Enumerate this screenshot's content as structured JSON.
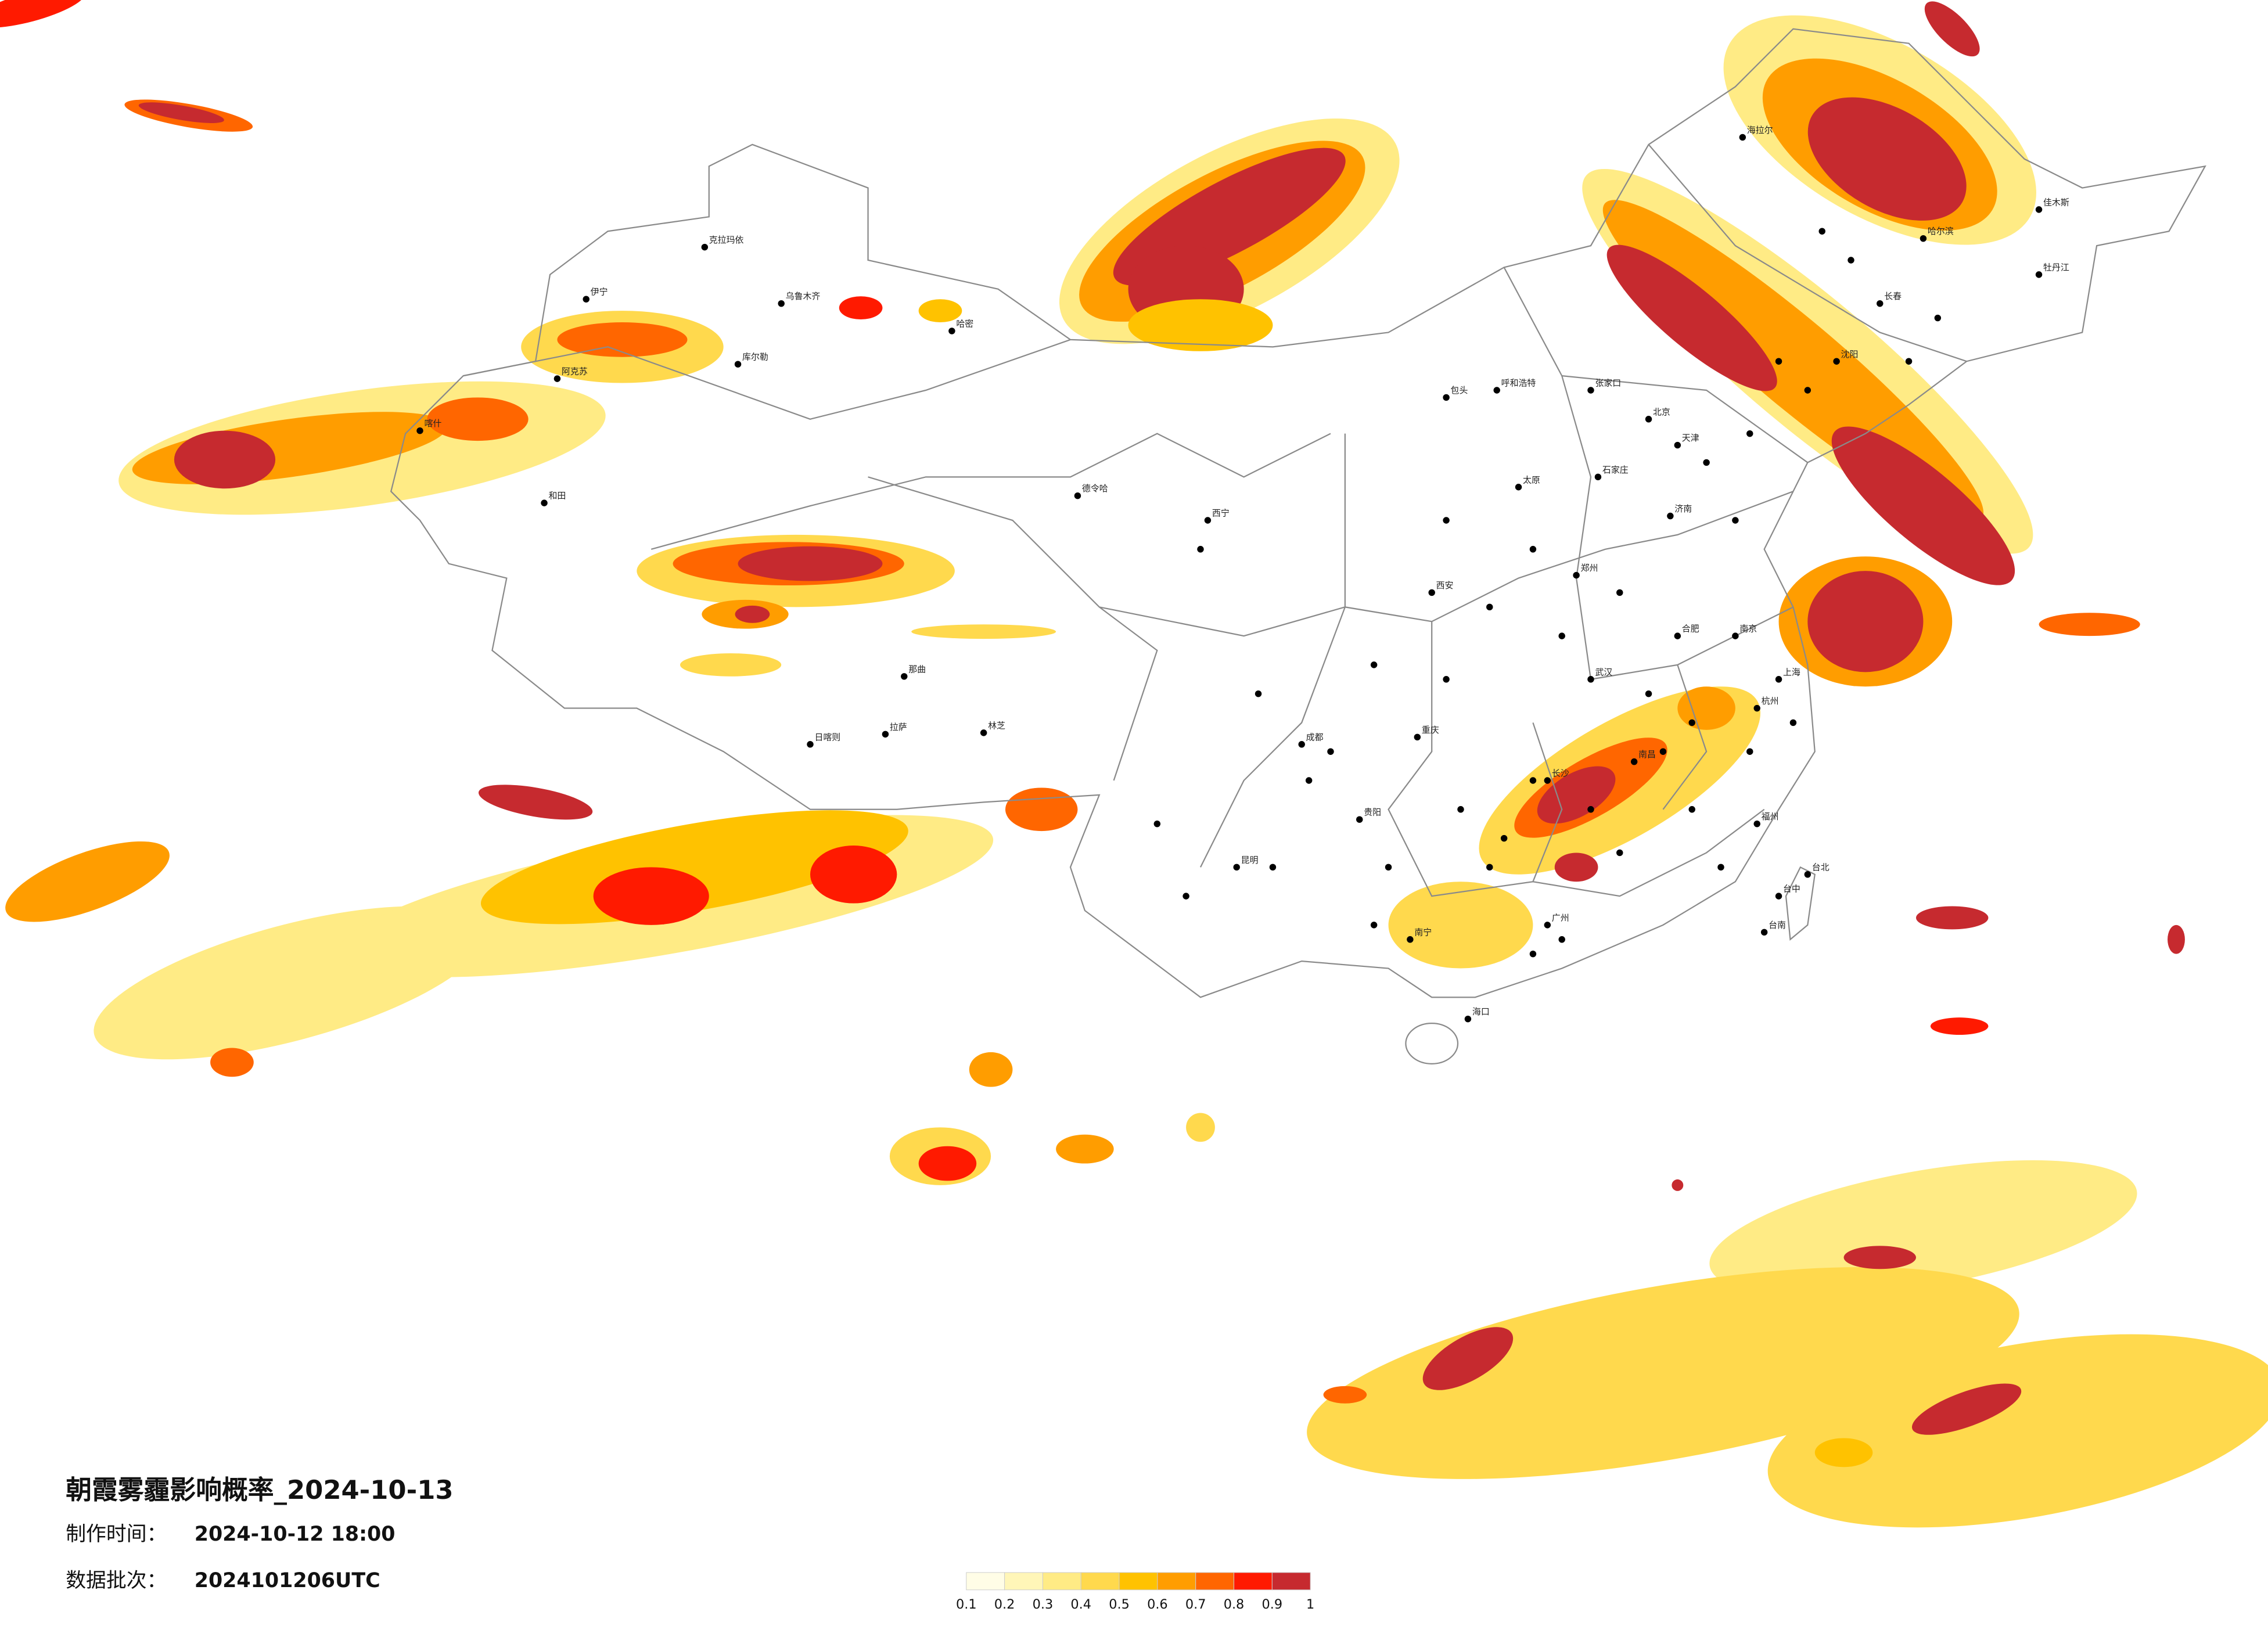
{
  "title": "朝霞雾霾影响概率_2024-10-13",
  "made": {
    "label": "制作时间：",
    "value": "2024-10-12 18:00"
  },
  "batch": {
    "label": "数据批次：",
    "value": "2024101206UTC"
  },
  "legend": {
    "ticks": [
      0.1,
      0.2,
      0.3,
      0.4,
      0.5,
      0.6,
      0.7,
      0.8,
      0.9,
      1
    ],
    "colors": [
      "#fffde6",
      "#fff6b8",
      "#ffeb85",
      "#ffd94d",
      "#ffc200",
      "#ff9d00",
      "#ff6600",
      "#ff1a00",
      "#c62a2f"
    ]
  },
  "cities": [
    "克拉玛依",
    "伊宁",
    "和田",
    "乌鲁木齐",
    "哈密",
    "库尔勒",
    "阿克苏",
    "喀什",
    "拉萨",
    "日喀则",
    "那曲",
    "林芝",
    "德令哈",
    "西宁",
    "呼和浩特",
    "北京",
    "天津",
    "石家庄",
    "太原",
    "济南",
    "郑州",
    "西安",
    "成都",
    "重庆",
    "贵阳",
    "昆明",
    "南宁",
    "海口",
    "广州",
    "长沙",
    "南昌",
    "武汉",
    "合肥",
    "南京",
    "上海",
    "杭州",
    "福州",
    "台北",
    "台中",
    "台南",
    "沈阳",
    "长春",
    "哈尔滨",
    "海拉尔",
    "佳木斯",
    "牡丹江",
    "张家口",
    "包头"
  ]
}
